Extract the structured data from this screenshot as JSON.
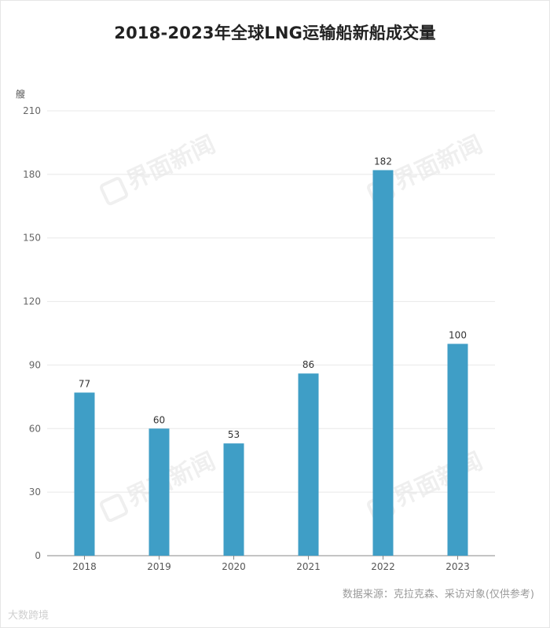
{
  "title": "2018-2023年全球LNG运输船新船成交量",
  "unit_label": "艘",
  "source": "数据来源：克拉克森、采访对象(仅供参考)",
  "watermark": "界面新闻",
  "brand": "大数跨境",
  "colors": {
    "bar": "#3f9ec6",
    "grid": "#e8e8e8",
    "axis": "#888888",
    "title": "#222222"
  },
  "chart_data": {
    "type": "bar",
    "categories": [
      "2018",
      "2019",
      "2020",
      "2021",
      "2022",
      "2023"
    ],
    "values": [
      77,
      60,
      53,
      86,
      182,
      100
    ],
    "title": "2018-2023年全球LNG运输船新船成交量",
    "xlabel": "",
    "ylabel": "艘",
    "ylim": [
      0,
      210
    ],
    "yticks": [
      0,
      30,
      60,
      90,
      120,
      150,
      180,
      210
    ],
    "grid": true,
    "data_labels": true
  }
}
